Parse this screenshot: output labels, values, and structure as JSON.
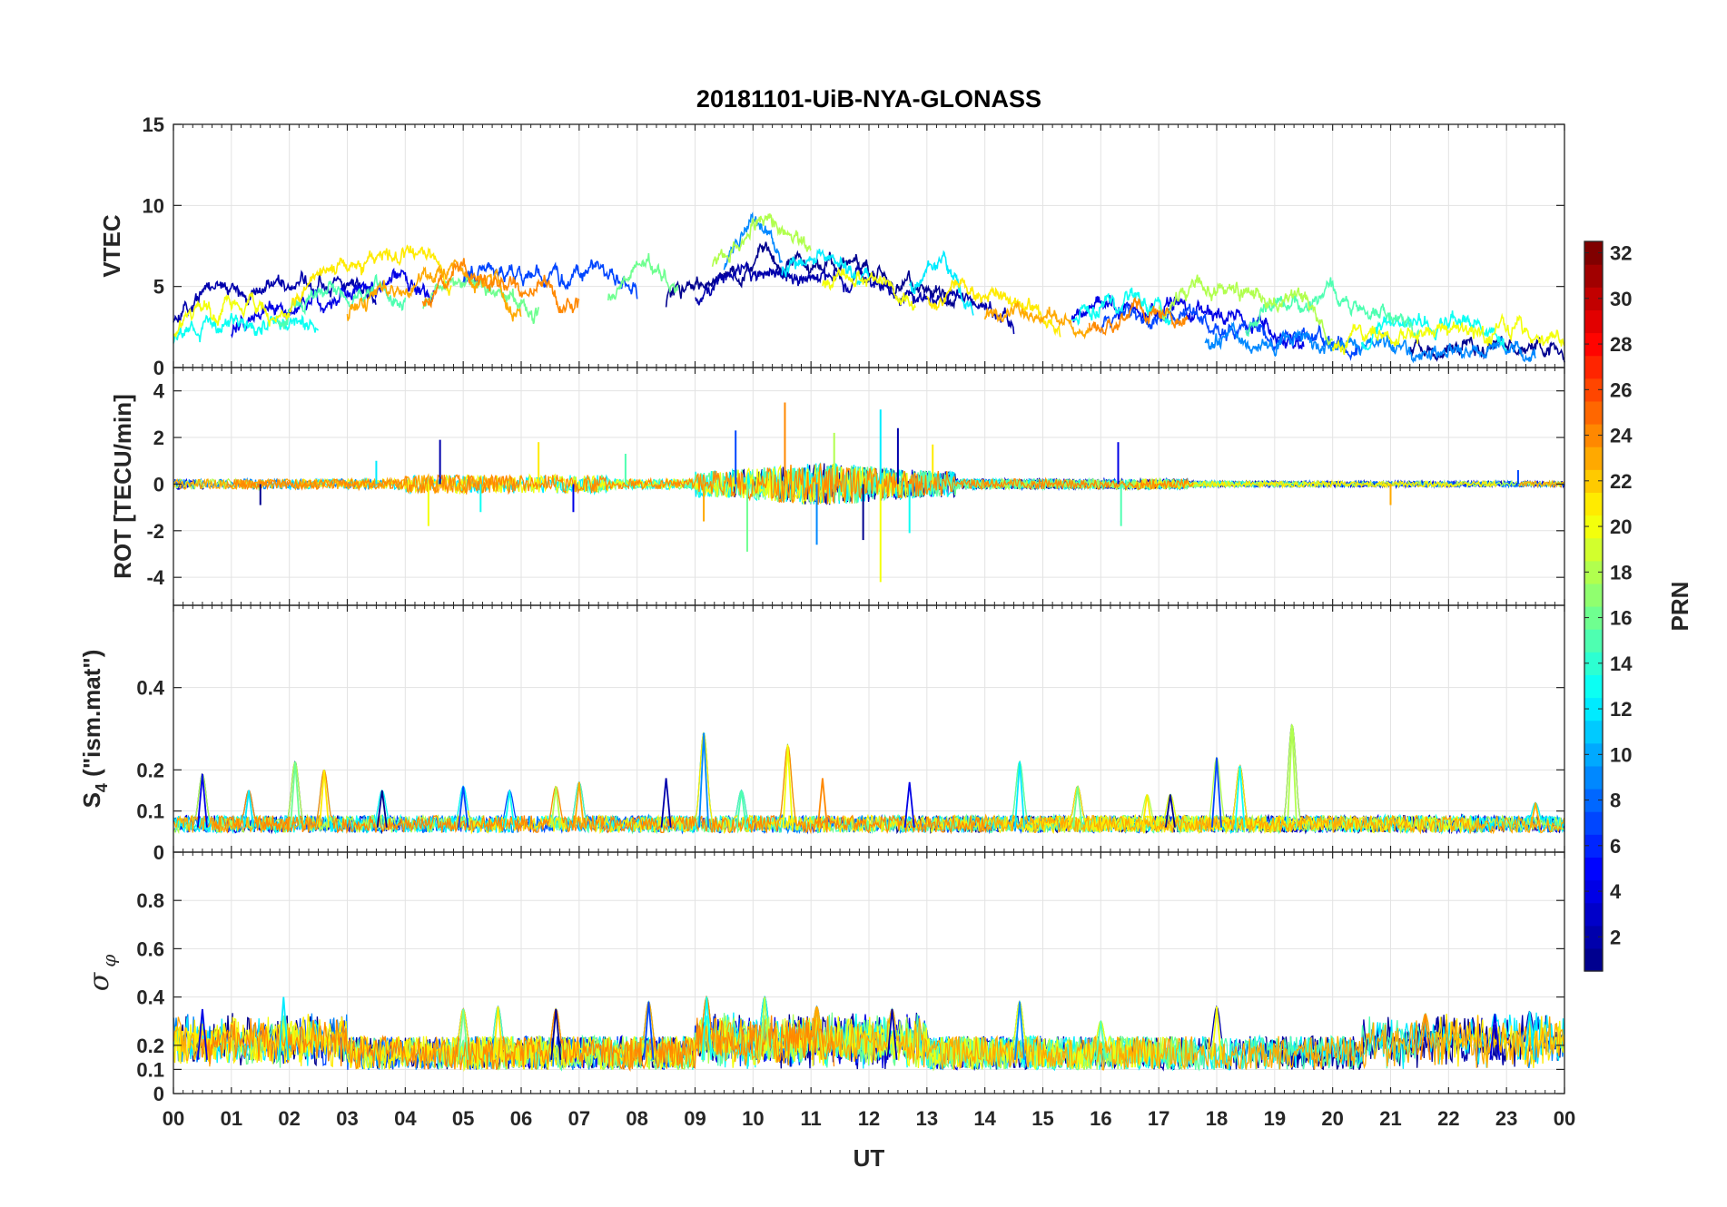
{
  "chart_data": {
    "type": "line",
    "title": "20181101-UiB-NYA-GLONASS",
    "xlabel": "UT",
    "x_range_hours": [
      0,
      24
    ],
    "x_tick_labels": [
      "00",
      "01",
      "02",
      "03",
      "04",
      "05",
      "06",
      "07",
      "08",
      "09",
      "10",
      "11",
      "12",
      "13",
      "14",
      "15",
      "16",
      "17",
      "18",
      "19",
      "20",
      "21",
      "22",
      "23",
      "00"
    ],
    "grid": true,
    "colormap": [
      "#00008f",
      "#0000ff",
      "#0080ff",
      "#00ffff",
      "#80ff80",
      "#ffff00",
      "#ff8000",
      "#ff0000",
      "#800000"
    ],
    "colorbar": {
      "label": "PRN",
      "range": [
        1,
        32
      ],
      "tick_labels": [
        "2",
        "4",
        "6",
        "8",
        "10",
        "12",
        "14",
        "16",
        "18",
        "20",
        "22",
        "24",
        "26",
        "28",
        "30",
        "32"
      ],
      "placement": "right"
    },
    "panels": [
      {
        "id": "vtec",
        "ylabel": "VTEC",
        "ylim": [
          0,
          15
        ],
        "y_tick_labels": [
          "0",
          "5",
          "10",
          "15"
        ],
        "envelope": [
          [
            0,
            3.5
          ],
          [
            1,
            3.8
          ],
          [
            2,
            4.2
          ],
          [
            3,
            4.6
          ],
          [
            4,
            5.6
          ],
          [
            5,
            6.3
          ],
          [
            6,
            5.0
          ],
          [
            7,
            4.8
          ],
          [
            8,
            5.4
          ],
          [
            9,
            6.4
          ],
          [
            10,
            7.6
          ],
          [
            11,
            7.3
          ],
          [
            12,
            6.9
          ],
          [
            13,
            6.1
          ],
          [
            14,
            5.4
          ],
          [
            15,
            4.6
          ],
          [
            16,
            4.4
          ],
          [
            17,
            4.3
          ],
          [
            18,
            3.6
          ],
          [
            19,
            3.0
          ],
          [
            20,
            2.8
          ],
          [
            21,
            2.7
          ],
          [
            22,
            2.6
          ],
          [
            23,
            2.7
          ],
          [
            24,
            2.8
          ]
        ],
        "series": [
          {
            "prn": 1,
            "segments": [
              [
                8.5,
                13.5
              ],
              [
                21.3,
                24.0
              ]
            ]
          },
          {
            "prn": 2,
            "segments": [
              [
                0.0,
                3.5
              ],
              [
                9.0,
                14.5
              ]
            ]
          },
          {
            "prn": 4,
            "segments": [
              [
                1.0,
                4.5
              ],
              [
                15.5,
                19.5
              ]
            ]
          },
          {
            "prn": 7,
            "segments": [
              [
                5.0,
                8.0
              ],
              [
                16.0,
                20.5
              ]
            ]
          },
          {
            "prn": 9,
            "segments": [
              [
                9.5,
                10.5
              ],
              [
                17.8,
                23.5
              ]
            ]
          },
          {
            "prn": 12,
            "segments": [
              [
                10.5,
                12.0
              ],
              [
                12.7,
                13.8
              ]
            ]
          },
          {
            "prn": 13,
            "segments": [
              [
                0.0,
                2.5
              ],
              [
                15.5,
                17.2
              ],
              [
                20.5,
                23.0
              ]
            ]
          },
          {
            "prn": 15,
            "segments": [
              [
                1.8,
                4.0
              ],
              [
                18.5,
                21.5
              ]
            ]
          },
          {
            "prn": 16,
            "segments": [
              [
                4.3,
                6.3
              ],
              [
                7.5,
                8.7
              ]
            ]
          },
          {
            "prn": 18,
            "segments": [
              [
                9.3,
                11.0
              ],
              [
                17.0,
                20.0
              ]
            ]
          },
          {
            "prn": 20,
            "segments": [
              [
                0.0,
                2.0
              ],
              [
                11.2,
                12.8
              ],
              [
                20.0,
                24.0
              ]
            ]
          },
          {
            "prn": 21,
            "segments": [
              [
                2.0,
                4.8
              ],
              [
                13.0,
                15.3
              ]
            ]
          },
          {
            "prn": 23,
            "segments": [
              [
                3.0,
                6.0
              ],
              [
                14.0,
                15.8
              ]
            ]
          },
          {
            "prn": 24,
            "segments": [
              [
                4.3,
                7.0
              ],
              [
                15.8,
                17.5
              ]
            ]
          }
        ]
      },
      {
        "id": "rot",
        "ylabel": "ROT [TECU/min]",
        "ylim": [
          -5.2,
          5.0
        ],
        "y_tick_labels": [
          "-4",
          "-2",
          "0",
          "2",
          "4"
        ],
        "y_ticks": [
          -4,
          -2,
          0,
          2,
          4
        ],
        "spikes": [
          [
            1.5,
            -0.9
          ],
          [
            3.5,
            1.0
          ],
          [
            4.4,
            -1.8
          ],
          [
            4.6,
            1.9
          ],
          [
            5.3,
            -1.2
          ],
          [
            6.3,
            1.8
          ],
          [
            6.9,
            -1.2
          ],
          [
            7.8,
            1.3
          ],
          [
            9.15,
            -1.6
          ],
          [
            9.7,
            2.3
          ],
          [
            9.9,
            -2.9
          ],
          [
            10.55,
            3.5
          ],
          [
            11.1,
            -2.6
          ],
          [
            11.4,
            2.2
          ],
          [
            11.9,
            -2.4
          ],
          [
            12.2,
            3.2
          ],
          [
            12.2,
            -4.2
          ],
          [
            12.5,
            2.4
          ],
          [
            12.7,
            -2.1
          ],
          [
            13.1,
            1.7
          ],
          [
            16.3,
            1.8
          ],
          [
            16.35,
            -1.8
          ],
          [
            21.0,
            -0.9
          ],
          [
            23.2,
            0.6
          ]
        ]
      },
      {
        "id": "s4",
        "ylabel": "S4 (\"ism.mat\")",
        "ylabel_main": "S",
        "ylabel_sub": "4",
        "ylabel_rest": " (\"ism.mat\")",
        "ylim": [
          0,
          0.6
        ],
        "y_tick_labels": [
          "0",
          "0.1",
          "0.2",
          "0.4"
        ],
        "y_ticks": [
          0,
          0.1,
          0.2,
          0.4
        ],
        "baseline": 0.06,
        "peaks": [
          [
            0.5,
            0.19
          ],
          [
            1.3,
            0.15
          ],
          [
            2.1,
            0.22
          ],
          [
            2.6,
            0.2
          ],
          [
            3.6,
            0.15
          ],
          [
            5.0,
            0.16
          ],
          [
            5.8,
            0.15
          ],
          [
            6.6,
            0.16
          ],
          [
            7.0,
            0.17
          ],
          [
            8.5,
            0.18
          ],
          [
            9.15,
            0.29
          ],
          [
            9.8,
            0.15
          ],
          [
            10.6,
            0.26
          ],
          [
            11.2,
            0.18
          ],
          [
            12.7,
            0.17
          ],
          [
            14.6,
            0.22
          ],
          [
            15.6,
            0.16
          ],
          [
            16.8,
            0.14
          ],
          [
            17.2,
            0.14
          ],
          [
            18.0,
            0.23
          ],
          [
            18.4,
            0.21
          ],
          [
            19.3,
            0.31
          ],
          [
            23.5,
            0.12
          ]
        ]
      },
      {
        "id": "sigma_phi",
        "ylabel": "σφ",
        "ylabel_main": "σ",
        "ylabel_sub": "φ",
        "ylim": [
          0,
          1
        ],
        "y_tick_labels": [
          "0",
          "0.1",
          "0.2",
          "0.4",
          "0.6",
          "0.8"
        ],
        "y_ticks": [
          0,
          0.1,
          0.2,
          0.4,
          0.6,
          0.8
        ],
        "baseline": 0.14,
        "peaks": [
          [
            0.5,
            0.35
          ],
          [
            1.9,
            0.4
          ],
          [
            5.0,
            0.35
          ],
          [
            5.6,
            0.36
          ],
          [
            6.6,
            0.35
          ],
          [
            8.2,
            0.38
          ],
          [
            9.2,
            0.4
          ],
          [
            10.2,
            0.4
          ],
          [
            11.1,
            0.36
          ],
          [
            12.4,
            0.35
          ],
          [
            14.6,
            0.38
          ],
          [
            16.0,
            0.3
          ],
          [
            18.0,
            0.36
          ],
          [
            21.6,
            0.33
          ],
          [
            22.8,
            0.33
          ],
          [
            23.4,
            0.34
          ]
        ]
      }
    ]
  }
}
